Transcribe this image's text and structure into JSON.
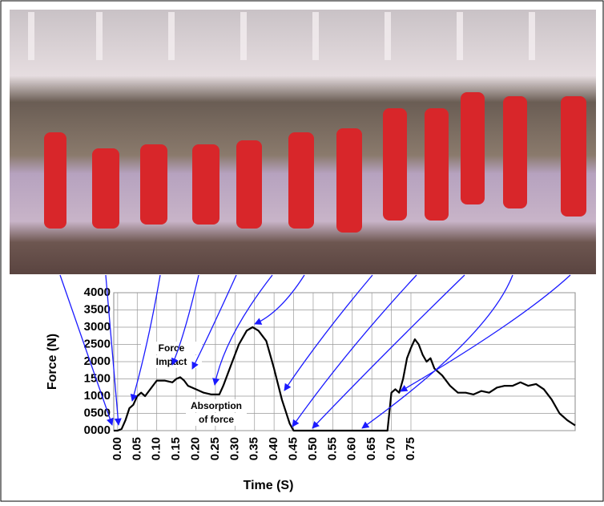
{
  "chart_data": {
    "type": "line",
    "x_label": "Time (S)",
    "y_label": "Force (N)",
    "annotations": [
      [
        "Force",
        "Impact"
      ],
      [
        "Absorption",
        "of force"
      ]
    ],
    "xlim": [
      -0.01,
      1.17
    ],
    "ylim": [
      0,
      4000
    ],
    "xticks": [
      {
        "value": 0,
        "label": "0.00"
      },
      0.05,
      {
        "value": 0.1,
        "label": "0.10"
      },
      0.15,
      {
        "value": 0.2,
        "label": "0.20"
      },
      0.25,
      {
        "value": 0.3,
        "label": "0.30"
      },
      0.35,
      {
        "value": 0.4,
        "label": "0.40"
      },
      0.45,
      {
        "value": 0.5,
        "label": "0.50"
      },
      0.55,
      {
        "value": 0.6,
        "label": "0.60"
      },
      0.65,
      {
        "value": 0.7,
        "label": "0.70"
      },
      0.75
    ],
    "yticks": [
      {
        "value": 0,
        "label": "0000"
      },
      {
        "value": 500,
        "label": "0500"
      },
      1000,
      1500,
      2000,
      2500,
      3000,
      3500,
      4000
    ],
    "grid": true,
    "color": "#000000",
    "x": [
      -0.01,
      0.0,
      0.01,
      0.02,
      0.03,
      0.04,
      0.05,
      0.06,
      0.07,
      0.08,
      0.09,
      0.1,
      0.12,
      0.14,
      0.15,
      0.16,
      0.17,
      0.18,
      0.19,
      0.2,
      0.22,
      0.24,
      0.26,
      0.27,
      0.29,
      0.31,
      0.33,
      0.345,
      0.36,
      0.38,
      0.4,
      0.42,
      0.44,
      0.45,
      0.69,
      0.7,
      0.71,
      0.72,
      0.73,
      0.74,
      0.75,
      0.76,
      0.77,
      0.78,
      0.79,
      0.8,
      0.81,
      0.83,
      0.85,
      0.87,
      0.89,
      0.91,
      0.93,
      0.95,
      0.97,
      0.99,
      1.01,
      1.03,
      1.05,
      1.07,
      1.09,
      1.11,
      1.13,
      1.15,
      1.17
    ],
    "values": [
      0,
      0,
      50,
      300,
      650,
      750,
      1000,
      1100,
      1000,
      1150,
      1300,
      1450,
      1450,
      1400,
      1500,
      1550,
      1450,
      1300,
      1250,
      1200,
      1100,
      1050,
      1050,
      1300,
      1900,
      2500,
      2900,
      3000,
      2900,
      2600,
      1800,
      900,
      200,
      0,
      0,
      1100,
      1200,
      1100,
      1500,
      2100,
      2400,
      2650,
      2500,
      2200,
      2000,
      2100,
      1800,
      1600,
      1300,
      1100,
      1100,
      1050,
      1150,
      1100,
      1250,
      1300,
      1300,
      1400,
      1300,
      1350,
      1200,
      900,
      500,
      300,
      150
    ]
  }
}
